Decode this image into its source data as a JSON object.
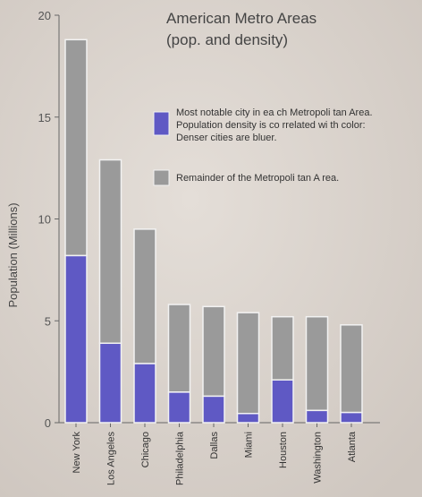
{
  "chart_data": {
    "type": "bar",
    "title": [
      "American Metro Areas",
      "(pop. and density)"
    ],
    "ylabel": "Population (Millions)",
    "xlabel": "",
    "ylim": [
      0,
      20
    ],
    "yticks": [
      0,
      5,
      10,
      15,
      20
    ],
    "categories": [
      "New York",
      "Los Angeles",
      "Chicago",
      "Philadelphia",
      "Dallas",
      "Miami",
      "Houston",
      "Washington",
      "Atlanta"
    ],
    "series": [
      {
        "name": "Most notable city in each Metropolitan Area",
        "color": "#5f59c4",
        "values": [
          8.2,
          3.9,
          2.9,
          1.5,
          1.3,
          0.45,
          2.1,
          0.6,
          0.5
        ]
      },
      {
        "name": "Remainder of the Metropolitan Area",
        "color": "#9a9a9a",
        "values": [
          10.6,
          9.0,
          6.6,
          4.3,
          4.4,
          4.95,
          3.1,
          4.6,
          4.3
        ]
      }
    ],
    "legend": {
      "placement": "top-right",
      "items": [
        {
          "lines": [
            "Most notable city in ea ch Metropoli tan Area.",
            "Population density is co rrelated wi th color:",
            "Denser cities are bluer."
          ],
          "color": "#5f59c4"
        },
        {
          "lines": [
            "Remainder of  the Metropoli tan A rea."
          ],
          "color": "#9a9a9a"
        }
      ]
    },
    "grid": false
  }
}
